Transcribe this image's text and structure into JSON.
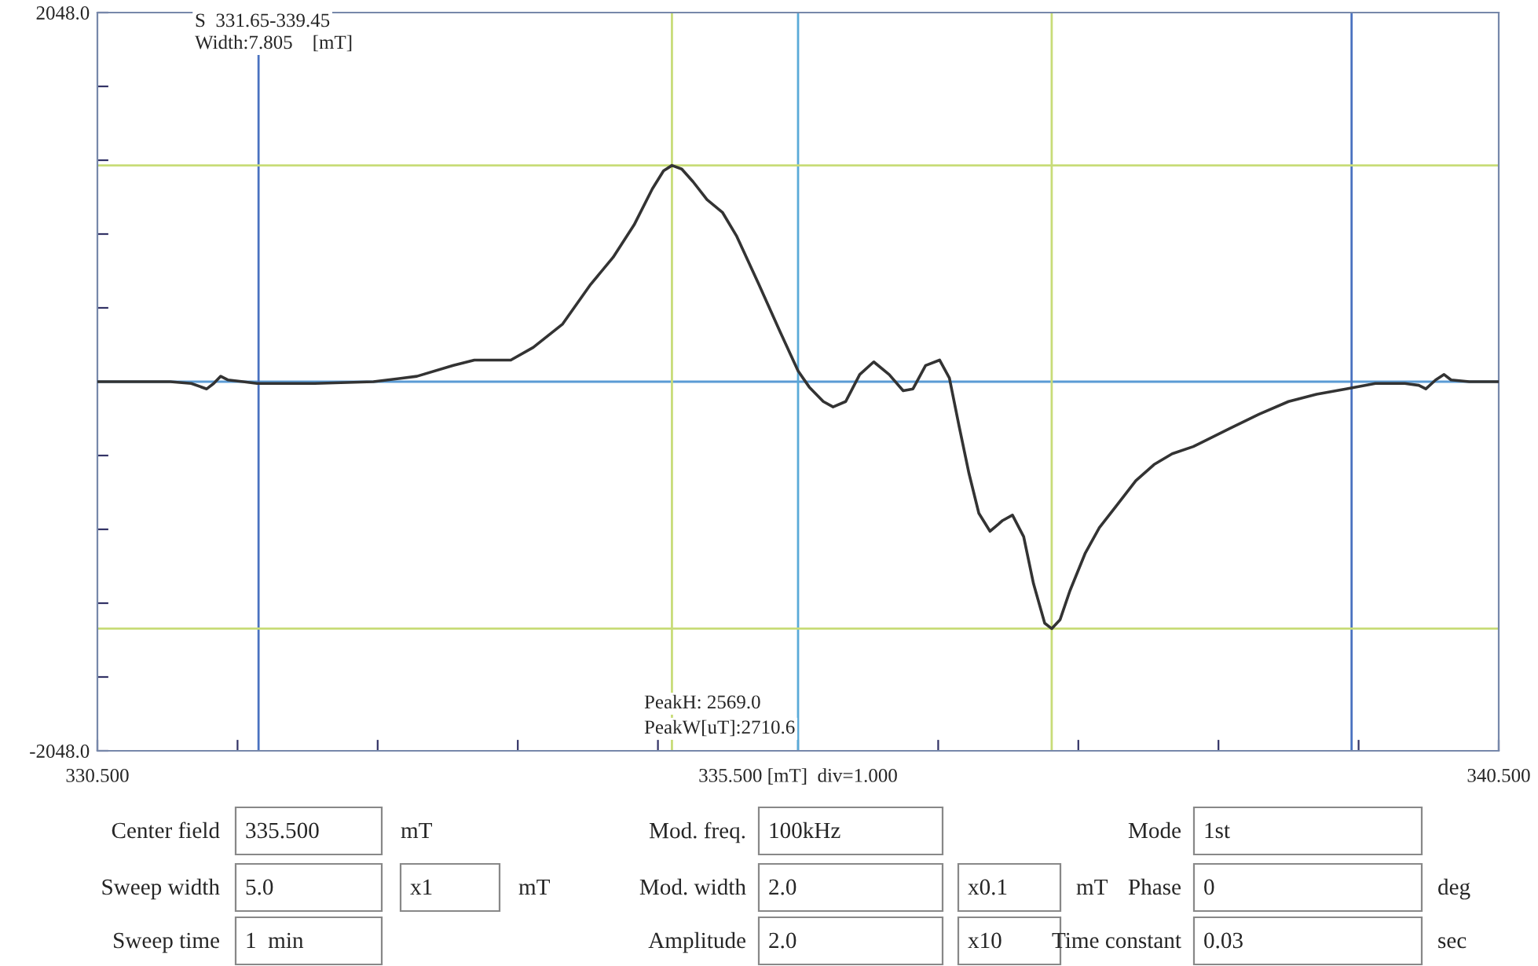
{
  "chart_data": {
    "type": "line",
    "x": [
      330.5,
      331.02,
      331.17,
      331.28,
      331.33,
      331.38,
      331.43,
      331.54,
      331.64,
      332.05,
      332.47,
      332.78,
      333.04,
      333.19,
      333.45,
      333.61,
      333.82,
      334.02,
      334.18,
      334.33,
      334.46,
      334.54,
      334.6,
      334.67,
      334.75,
      334.85,
      334.96,
      335.06,
      335.22,
      335.37,
      335.5,
      335.58,
      335.68,
      335.75,
      335.84,
      335.94,
      336.04,
      336.15,
      336.25,
      336.32,
      336.41,
      336.51,
      336.58,
      336.65,
      336.72,
      336.79,
      336.87,
      336.96,
      337.03,
      337.11,
      337.18,
      337.26,
      337.31,
      337.37,
      337.44,
      337.55,
      337.65,
      337.78,
      337.91,
      338.04,
      338.17,
      338.32,
      338.58,
      338.79,
      339.0,
      339.2,
      339.41,
      339.62,
      339.83,
      339.93,
      339.98,
      340.05,
      340.11,
      340.16,
      340.29,
      340.5
    ],
    "series": [
      {
        "color": "#333333",
        "values": [
          0,
          0,
          -10,
          -40,
          -10,
          30,
          10,
          0,
          -10,
          -10,
          0,
          30,
          90,
          120,
          120,
          190,
          320,
          540,
          690,
          870,
          1070,
          1170,
          1200,
          1180,
          1110,
          1010,
          940,
          810,
          540,
          280,
          60,
          -30,
          -110,
          -140,
          -110,
          40,
          110,
          40,
          -50,
          -40,
          90,
          120,
          20,
          -250,
          -510,
          -730,
          -830,
          -770,
          -740,
          -860,
          -1120,
          -1340,
          -1370,
          -1320,
          -1160,
          -950,
          -810,
          -680,
          -550,
          -460,
          -400,
          -360,
          -260,
          -180,
          -110,
          -70,
          -40,
          -10,
          -10,
          -20,
          -40,
          10,
          40,
          10,
          0,
          0
        ]
      }
    ],
    "xlim": [
      330.5,
      340.5
    ],
    "xticks": [
      {
        "value": 330.5,
        "label": "330.500"
      },
      {
        "value": 331.5,
        "label": null
      },
      {
        "value": 332.5,
        "label": null
      },
      {
        "value": 333.5,
        "label": null
      },
      {
        "value": 334.5,
        "label": null
      },
      {
        "value": 335.5,
        "label": "335.500 [mT]  div=1.000"
      },
      {
        "value": 336.5,
        "label": null
      },
      {
        "value": 337.5,
        "label": null
      },
      {
        "value": 338.5,
        "label": null
      },
      {
        "value": 339.5,
        "label": null
      },
      {
        "value": 340.5,
        "label": "340.500"
      }
    ],
    "ylim": [
      -2048,
      2048
    ],
    "yticks": [
      {
        "value": -2048,
        "label": "-2048.0"
      },
      {
        "value": -1638.4,
        "label": null
      },
      {
        "value": -1228.8,
        "label": null
      },
      {
        "value": -819.2,
        "label": null
      },
      {
        "value": -409.6,
        "label": null
      },
      {
        "value": 409.6,
        "label": null
      },
      {
        "value": 819.2,
        "label": null
      },
      {
        "value": 1228.8,
        "label": null
      },
      {
        "value": 1638.4,
        "label": null
      },
      {
        "value": 2048,
        "label": "2048.0"
      }
    ],
    "ref_lines": [
      {
        "axis": "y",
        "value": 0,
        "color": "#5b9bd5"
      },
      {
        "axis": "x",
        "value": 331.65,
        "color": "#4a72c0"
      },
      {
        "axis": "x",
        "value": 335.5,
        "color": "#5aaad8"
      },
      {
        "axis": "x",
        "value": 339.45,
        "color": "#4a72c0"
      },
      {
        "axis": "x",
        "value": 334.6,
        "color": "#c8dc78"
      },
      {
        "axis": "x",
        "value": 337.31,
        "color": "#c8dc78"
      },
      {
        "axis": "y",
        "value": 1200,
        "color": "#c8dc78"
      },
      {
        "axis": "y",
        "value": -1370,
        "color": "#c8dc78"
      }
    ],
    "grid": false,
    "legend": false,
    "line_style": "solid",
    "annotations": [
      "S  331.65-339.45",
      "Width:7.805    [mT]",
      "PeakH: 2569.0",
      "PeakW[uT]:2710.6",
      "Center field",
      "335.500",
      "mT",
      "Mod. freq.",
      "100kHz",
      "Mode",
      "1st",
      "Sweep width",
      "5.0",
      "x1",
      "mT",
      "Mod. width",
      "2.0",
      "x0.1",
      "mT",
      "Phase",
      "0",
      "deg",
      "Sweep time",
      "1  min",
      "Amplitude",
      "2.0",
      "x10",
      "Time constant",
      "0.03",
      "sec"
    ]
  }
}
